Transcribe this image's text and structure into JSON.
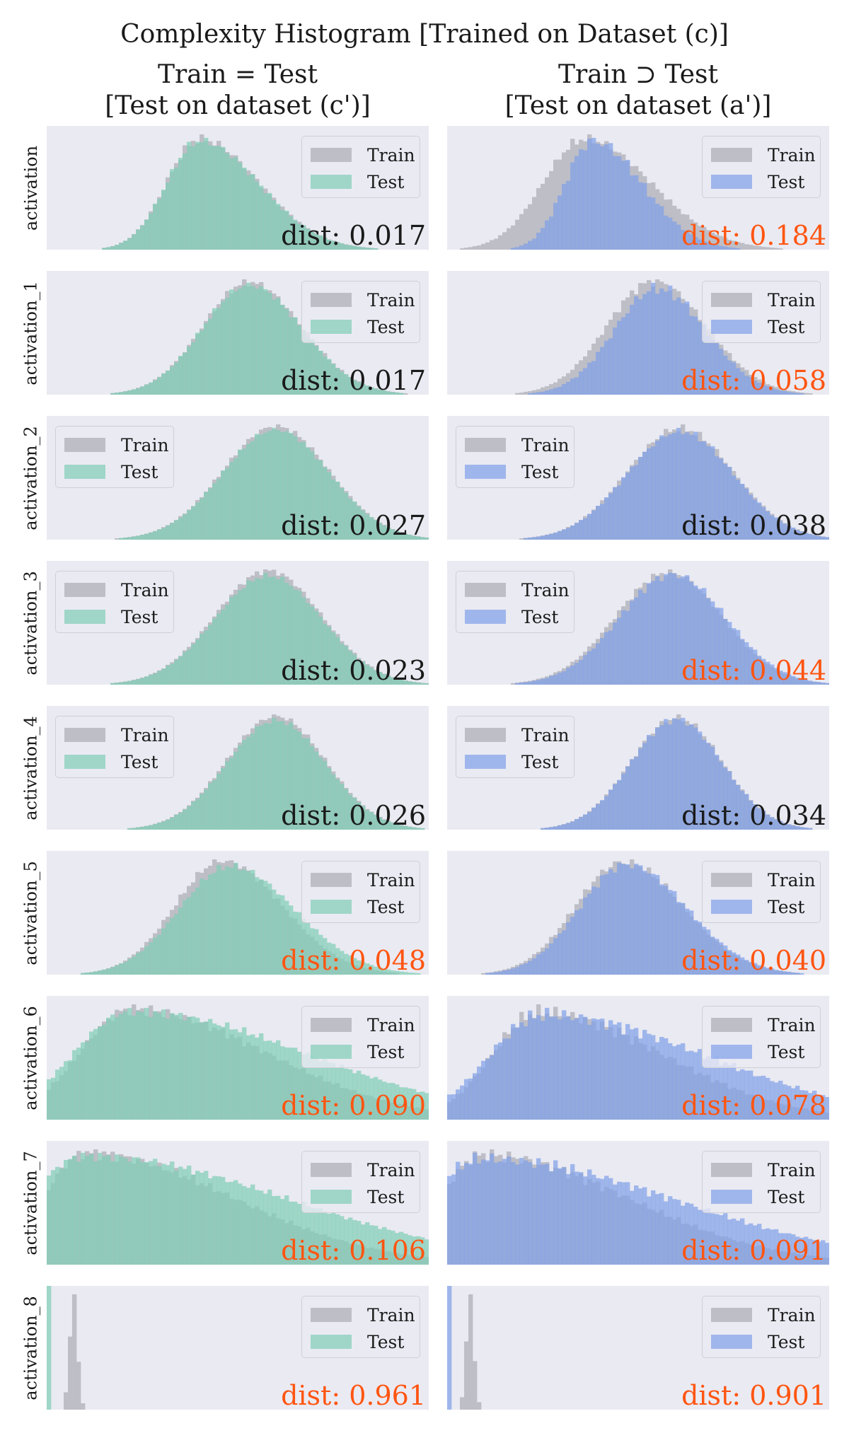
{
  "title": "Complexity Histogram [Trained on Dataset (c)]",
  "columns": [
    {
      "line1": "Train = Test",
      "line2": "[Test on dataset (c')]",
      "test_color": "#7fcdb5"
    },
    {
      "line1": "Train ⊃ Test",
      "line2": "[Test on dataset (a')]",
      "test_color": "#7f9fe8"
    }
  ],
  "legend": {
    "train_label": "Train",
    "test_label": "Test"
  },
  "colors": {
    "train": "#bebec6",
    "panel_bg": "#eaeaf2",
    "dist_normal": "#1a1a1a",
    "dist_highlight": "#ff5511"
  },
  "chart_data": {
    "type": "histogram",
    "title": "Complexity Histogram [Trained on Dataset (c)]",
    "grid": false,
    "rows": [
      {
        "label": "activation",
        "cells": [
          {
            "dist_text": "dist: 0.017",
            "highlight": false,
            "legend": "top-right",
            "train": {
              "mean": 0.4,
              "sd": 0.12,
              "skew": 0.5,
              "jitter": 0.05
            },
            "test": {
              "mean": 0.4,
              "sd": 0.12,
              "skew": 0.5,
              "jitter": 0.05
            }
          },
          {
            "dist_text": "dist: 0.184",
            "highlight": true,
            "legend": "top-right",
            "train": {
              "mean": 0.36,
              "sd": 0.14,
              "skew": 0.4,
              "jitter": 0.05
            },
            "test": {
              "mean": 0.38,
              "sd": 0.1,
              "skew": 0.5,
              "jitter": 0.08
            }
          }
        ]
      },
      {
        "label": "activation_1",
        "cells": [
          {
            "dist_text": "dist: 0.017",
            "highlight": false,
            "legend": "top-right",
            "train": {
              "mean": 0.53,
              "sd": 0.13,
              "skew": 0.1,
              "jitter": 0.04
            },
            "test": {
              "mean": 0.53,
              "sd": 0.13,
              "skew": 0.1,
              "jitter": 0.04
            }
          },
          {
            "dist_text": "dist: 0.058",
            "highlight": true,
            "legend": "top-right",
            "train": {
              "mean": 0.54,
              "sd": 0.13,
              "skew": 0.1,
              "jitter": 0.05
            },
            "test": {
              "mean": 0.55,
              "sd": 0.12,
              "skew": 0.1,
              "jitter": 0.07
            }
          }
        ]
      },
      {
        "label": "activation_2",
        "cells": [
          {
            "dist_text": "dist: 0.027",
            "highlight": false,
            "legend": "top-left",
            "train": {
              "mean": 0.6,
              "sd": 0.14,
              "skew": 0.0,
              "jitter": 0.03
            },
            "test": {
              "mean": 0.6,
              "sd": 0.14,
              "skew": 0.0,
              "jitter": 0.03
            }
          },
          {
            "dist_text": "dist: 0.038",
            "highlight": false,
            "legend": "top-left",
            "train": {
              "mean": 0.61,
              "sd": 0.14,
              "skew": 0.0,
              "jitter": 0.04
            },
            "test": {
              "mean": 0.61,
              "sd": 0.14,
              "skew": 0.0,
              "jitter": 0.04
            }
          }
        ]
      },
      {
        "label": "activation_3",
        "cells": [
          {
            "dist_text": "dist: 0.023",
            "highlight": false,
            "legend": "top-left",
            "train": {
              "mean": 0.58,
              "sd": 0.14,
              "skew": 0.0,
              "jitter": 0.03
            },
            "test": {
              "mean": 0.58,
              "sd": 0.14,
              "skew": 0.0,
              "jitter": 0.03
            }
          },
          {
            "dist_text": "dist: 0.044",
            "highlight": true,
            "legend": "top-left",
            "train": {
              "mean": 0.58,
              "sd": 0.14,
              "skew": 0.0,
              "jitter": 0.04
            },
            "test": {
              "mean": 0.59,
              "sd": 0.14,
              "skew": 0.0,
              "jitter": 0.05
            }
          }
        ]
      },
      {
        "label": "activation_4",
        "cells": [
          {
            "dist_text": "dist: 0.026",
            "highlight": false,
            "legend": "top-left",
            "train": {
              "mean": 0.6,
              "sd": 0.13,
              "skew": 0.0,
              "jitter": 0.03
            },
            "test": {
              "mean": 0.6,
              "sd": 0.13,
              "skew": 0.0,
              "jitter": 0.03
            }
          },
          {
            "dist_text": "dist: 0.034",
            "highlight": false,
            "legend": "top-left",
            "train": {
              "mean": 0.6,
              "sd": 0.12,
              "skew": 0.0,
              "jitter": 0.04
            },
            "test": {
              "mean": 0.6,
              "sd": 0.12,
              "skew": 0.0,
              "jitter": 0.04
            }
          }
        ]
      },
      {
        "label": "activation_5",
        "cells": [
          {
            "dist_text": "dist: 0.048",
            "highlight": true,
            "legend": "top-right",
            "train": {
              "mean": 0.46,
              "sd": 0.14,
              "skew": 0.2,
              "jitter": 0.04
            },
            "test": {
              "mean": 0.48,
              "sd": 0.15,
              "skew": 0.2,
              "jitter": 0.04
            }
          },
          {
            "dist_text": "dist: 0.040",
            "highlight": true,
            "legend": "top-right",
            "train": {
              "mean": 0.46,
              "sd": 0.14,
              "skew": 0.2,
              "jitter": 0.05
            },
            "test": {
              "mean": 0.47,
              "sd": 0.14,
              "skew": 0.2,
              "jitter": 0.05
            }
          }
        ]
      },
      {
        "label": "activation_6",
        "cells": [
          {
            "dist_text": "dist: 0.090",
            "highlight": true,
            "legend": "top-right",
            "train": {
              "mean": 0.22,
              "sd": 0.24,
              "skew": 0.8,
              "jitter": 0.06
            },
            "test": {
              "mean": 0.22,
              "sd": 0.3,
              "skew": 0.9,
              "jitter": 0.05
            }
          },
          {
            "dist_text": "dist: 0.078",
            "highlight": true,
            "legend": "top-right",
            "train": {
              "mean": 0.24,
              "sd": 0.22,
              "skew": 0.8,
              "jitter": 0.08
            },
            "test": {
              "mean": 0.25,
              "sd": 0.28,
              "skew": 0.9,
              "jitter": 0.08
            }
          }
        ]
      },
      {
        "label": "activation_7",
        "cells": [
          {
            "dist_text": "dist: 0.106",
            "highlight": true,
            "legend": "top-right",
            "train": {
              "mean": 0.1,
              "sd": 0.24,
              "skew": 1.0,
              "jitter": 0.06
            },
            "test": {
              "mean": 0.1,
              "sd": 0.33,
              "skew": 1.0,
              "jitter": 0.05
            }
          },
          {
            "dist_text": "dist: 0.091",
            "highlight": true,
            "legend": "top-right",
            "train": {
              "mean": 0.09,
              "sd": 0.24,
              "skew": 1.0,
              "jitter": 0.07
            },
            "test": {
              "mean": 0.09,
              "sd": 0.32,
              "skew": 1.0,
              "jitter": 0.07
            }
          }
        ]
      },
      {
        "label": "activation_8",
        "cells": [
          {
            "dist_text": "dist: 0.961",
            "highlight": true,
            "legend": "top-right",
            "train": {
              "mean": 0.07,
              "sd": 0.01,
              "skew": 0.0,
              "jitter": 0.1
            },
            "test": {
              "spike_at": 0.0
            }
          },
          {
            "dist_text": "dist: 0.901",
            "highlight": true,
            "legend": "top-right",
            "train": {
              "mean": 0.06,
              "sd": 0.01,
              "skew": 0.0,
              "jitter": 0.1
            },
            "test": {
              "spike_at": 0.0
            }
          }
        ]
      }
    ]
  }
}
